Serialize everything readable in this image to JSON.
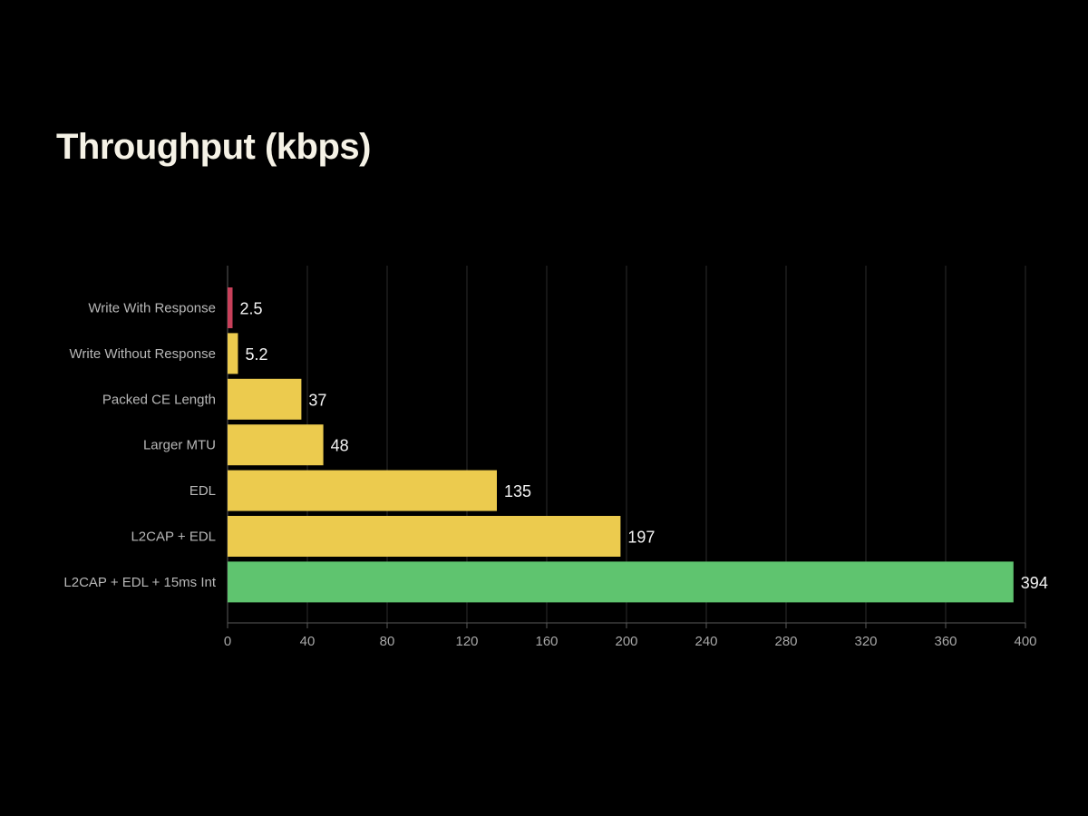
{
  "title": "Throughput (kbps)",
  "colors": {
    "background": "#000000",
    "red": "#c8405a",
    "yellow": "#eccb4e",
    "green": "#5fc46f",
    "grid": "#2c2c2c",
    "axis": "#5a5a5a"
  },
  "chart_data": {
    "type": "bar",
    "orientation": "horizontal",
    "title": "Throughput (kbps)",
    "xlabel": "",
    "ylabel": "",
    "xlim": [
      0,
      400
    ],
    "xticks": [
      0,
      40,
      80,
      120,
      160,
      200,
      240,
      280,
      320,
      360,
      400
    ],
    "grid": true,
    "categories": [
      "Write With Response",
      "Write Without Response",
      "Packed CE Length",
      "Larger MTU",
      "EDL",
      "L2CAP + EDL",
      "L2CAP + EDL + 15ms Int"
    ],
    "values": [
      2.5,
      5.2,
      37,
      48,
      135,
      197,
      394
    ],
    "value_labels": [
      "2.5",
      "5.2",
      "37",
      "48",
      "135",
      "197",
      "394"
    ],
    "bar_colors": [
      "red",
      "yellow",
      "yellow",
      "yellow",
      "yellow",
      "yellow",
      "green"
    ]
  }
}
